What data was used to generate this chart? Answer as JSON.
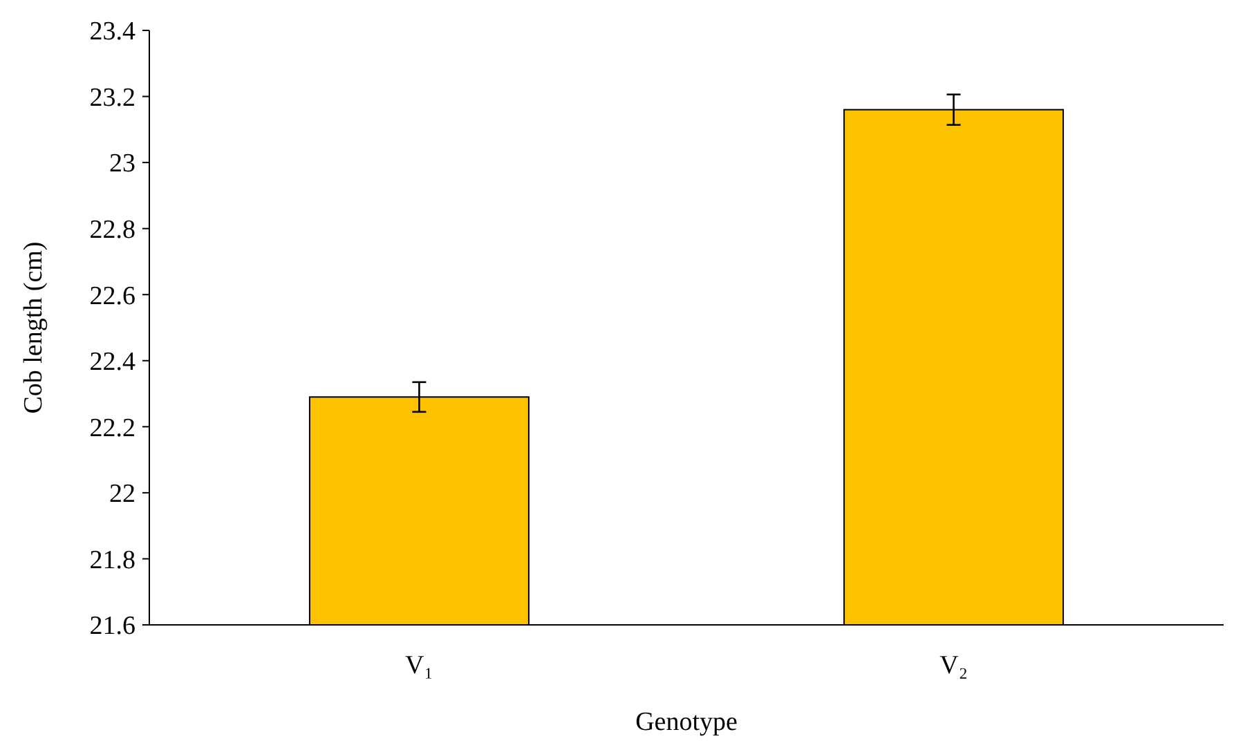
{
  "chart_data": {
    "type": "bar",
    "xlabel": "Genotype",
    "ylabel": "Cob length (cm)",
    "categories": [
      "V₁",
      "V₂"
    ],
    "values": [
      22.29,
      23.16
    ],
    "errors": [
      0.045,
      0.046
    ],
    "color": "#fcc200",
    "ylim": [
      21.6,
      23.4
    ],
    "yticks": [
      21.6,
      21.8,
      22,
      22.2,
      22.4,
      22.6,
      22.8,
      23,
      23.2,
      23.4
    ],
    "grid": false
  }
}
